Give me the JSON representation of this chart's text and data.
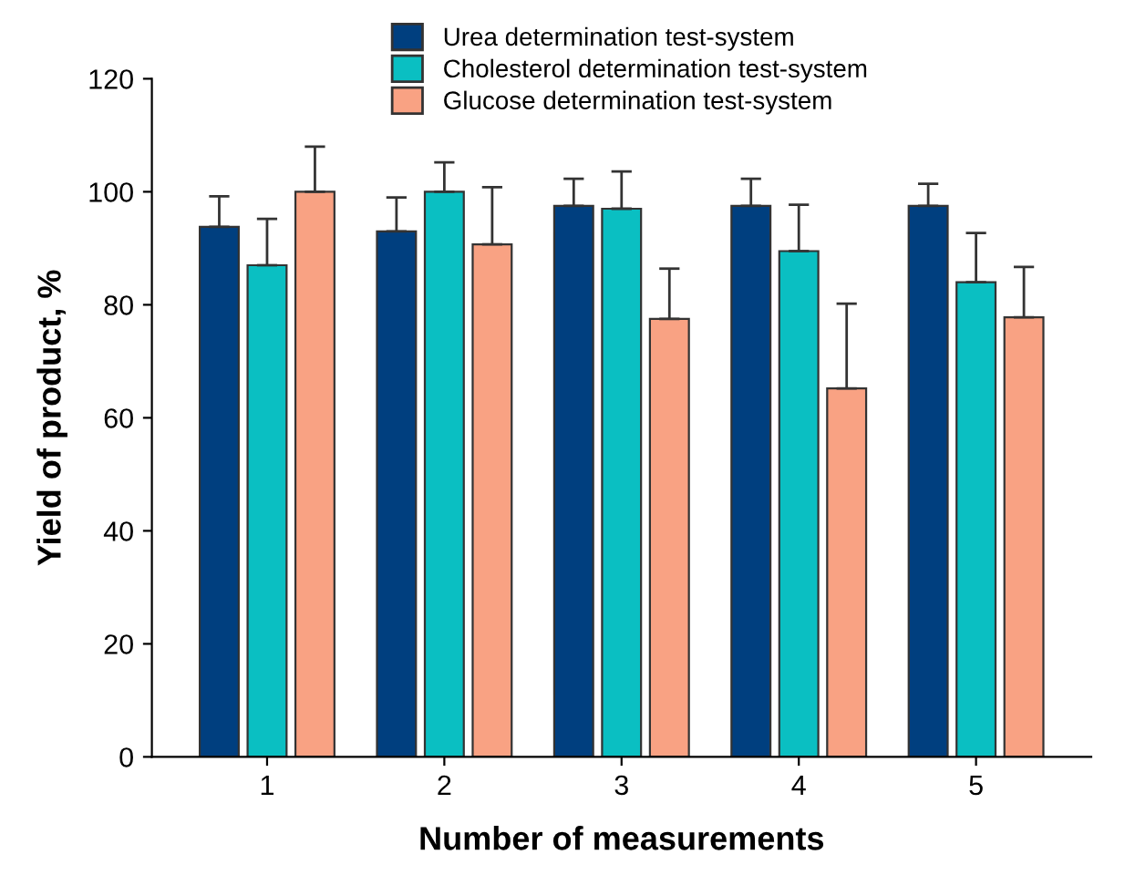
{
  "chart_data": {
    "type": "bar",
    "xlabel": "Number of measurements",
    "ylabel": "Yield of product, %",
    "categories": [
      "1",
      "2",
      "3",
      "4",
      "5"
    ],
    "series": [
      {
        "name": "Urea determination test-system",
        "color": "#003f7f",
        "values": [
          93.8,
          93,
          97.5,
          97.5,
          97.5
        ],
        "errors": [
          [
            93.8,
            99.2
          ],
          [
            93,
            99
          ],
          [
            97.5,
            102.3
          ],
          [
            97.5,
            102.3
          ],
          [
            97.5,
            101.4
          ]
        ]
      },
      {
        "name": "Cholesterol determination test-system",
        "color": "#0abfc2",
        "values": [
          87,
          100,
          97,
          89.5,
          84
        ],
        "errors": [
          [
            87,
            95.2
          ],
          [
            100,
            105.2
          ],
          [
            97,
            103.6
          ],
          [
            89.5,
            97.7
          ],
          [
            84,
            92.7
          ]
        ]
      },
      {
        "name": "Glucose determination test-system",
        "color": "#f9a283",
        "values": [
          100,
          90.7,
          77.5,
          65.2,
          77.8
        ],
        "errors": [
          [
            100,
            108
          ],
          [
            90.7,
            100.8
          ],
          [
            77.5,
            86.4
          ],
          [
            65.2,
            80.2
          ],
          [
            77.8,
            86.7
          ]
        ]
      }
    ],
    "ylim": [
      0,
      120
    ],
    "yticks": [
      0,
      20,
      40,
      60,
      80,
      100,
      120
    ],
    "grid": false,
    "legend": "top"
  }
}
